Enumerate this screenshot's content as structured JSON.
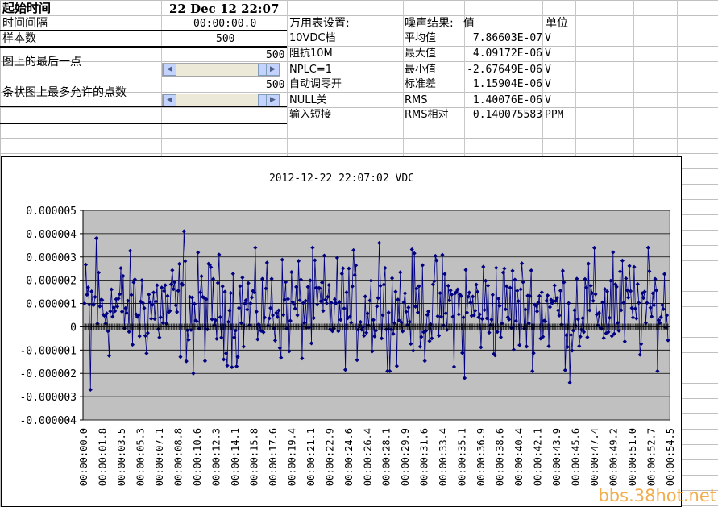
{
  "top": {
    "start_label": "起始时间",
    "start_value": "22 Dec 12 22:07",
    "interval_label": "时间间隔",
    "interval_value": "00:00:00.0",
    "samples_label": "样本数",
    "samples_value": "500",
    "last_point_label": "图上的最后一点",
    "last_point_value": "500",
    "max_points_label": "条状图上最多允许的点数",
    "max_points_value": "500"
  },
  "settings": {
    "header": "万用表设置:",
    "items": [
      "10VDC档",
      "阻抗10M",
      "NPLC=1",
      "自动调零开",
      "NULL关",
      "输入短接"
    ]
  },
  "results": {
    "header_name": "噪声结果:",
    "header_value": "值",
    "header_unit": "单位",
    "rows": [
      {
        "name": "平均值",
        "value": "7.86603E-07",
        "unit": "V"
      },
      {
        "name": "最大值",
        "value": "4.09172E-06",
        "unit": "V"
      },
      {
        "name": "最小值",
        "value": "-2.67649E-06",
        "unit": "V"
      },
      {
        "name": "标准差",
        "value": "1.15904E-06",
        "unit": "V"
      },
      {
        "name": "RMS",
        "value": "1.40076E-06",
        "unit": "V"
      },
      {
        "name": "RMS相对",
        "value": "0.140075583",
        "unit": "PPM"
      }
    ]
  },
  "scroll_icons": {
    "left": "arrow-left-icon",
    "right": "arrow-right-icon"
  },
  "chart_data": {
    "type": "line",
    "title": "2012-12-22 22:07:02 VDC",
    "ylim": [
      -4e-06,
      5e-06
    ],
    "ytick_labels": [
      "0.000005",
      "0.000004",
      "0.000003",
      "0.000002",
      "0.000001",
      "0",
      "-0.000001",
      "-0.000002",
      "-0.000003",
      "-0.000004"
    ],
    "xtick_labels": [
      "00:00:00.0",
      "00:00:01.8",
      "00:00:03.5",
      "00:00:05.3",
      "00:00:07.1",
      "00:00:08.8",
      "00:00:10.6",
      "00:00:12.3",
      "00:00:14.1",
      "00:00:15.8",
      "00:00:17.6",
      "00:00:19.4",
      "00:00:21.1",
      "00:00:22.9",
      "00:00:24.6",
      "00:00:26.4",
      "00:00:28.1",
      "00:00:29.9",
      "00:00:31.6",
      "00:00:33.4",
      "00:00:35.1",
      "00:00:36.9",
      "00:00:38.6",
      "00:00:40.4",
      "00:00:42.1",
      "00:00:43.9",
      "00:00:45.6",
      "00:00:47.4",
      "00:00:49.2",
      "00:00:51.0",
      "00:00:52.7",
      "00:00:54.5"
    ],
    "grid": true,
    "plot_color": "#c0c0c0",
    "series_color": "#000080",
    "n_points": 500,
    "marked_points": [
      {
        "index": 10,
        "value": 3.8e-06
      },
      {
        "index": 5,
        "value": -2.7e-06
      },
      {
        "index": 85,
        "value": 4.1e-06
      },
      {
        "index": 93,
        "value": -2e-06
      },
      {
        "index": 130,
        "value": -1.7e-06
      },
      {
        "index": 252,
        "value": 3.6e-06
      },
      {
        "index": 325,
        "value": -2.2e-06
      },
      {
        "index": 415,
        "value": -2.4e-06
      },
      {
        "index": 452,
        "value": 3.2e-06
      }
    ]
  }
}
